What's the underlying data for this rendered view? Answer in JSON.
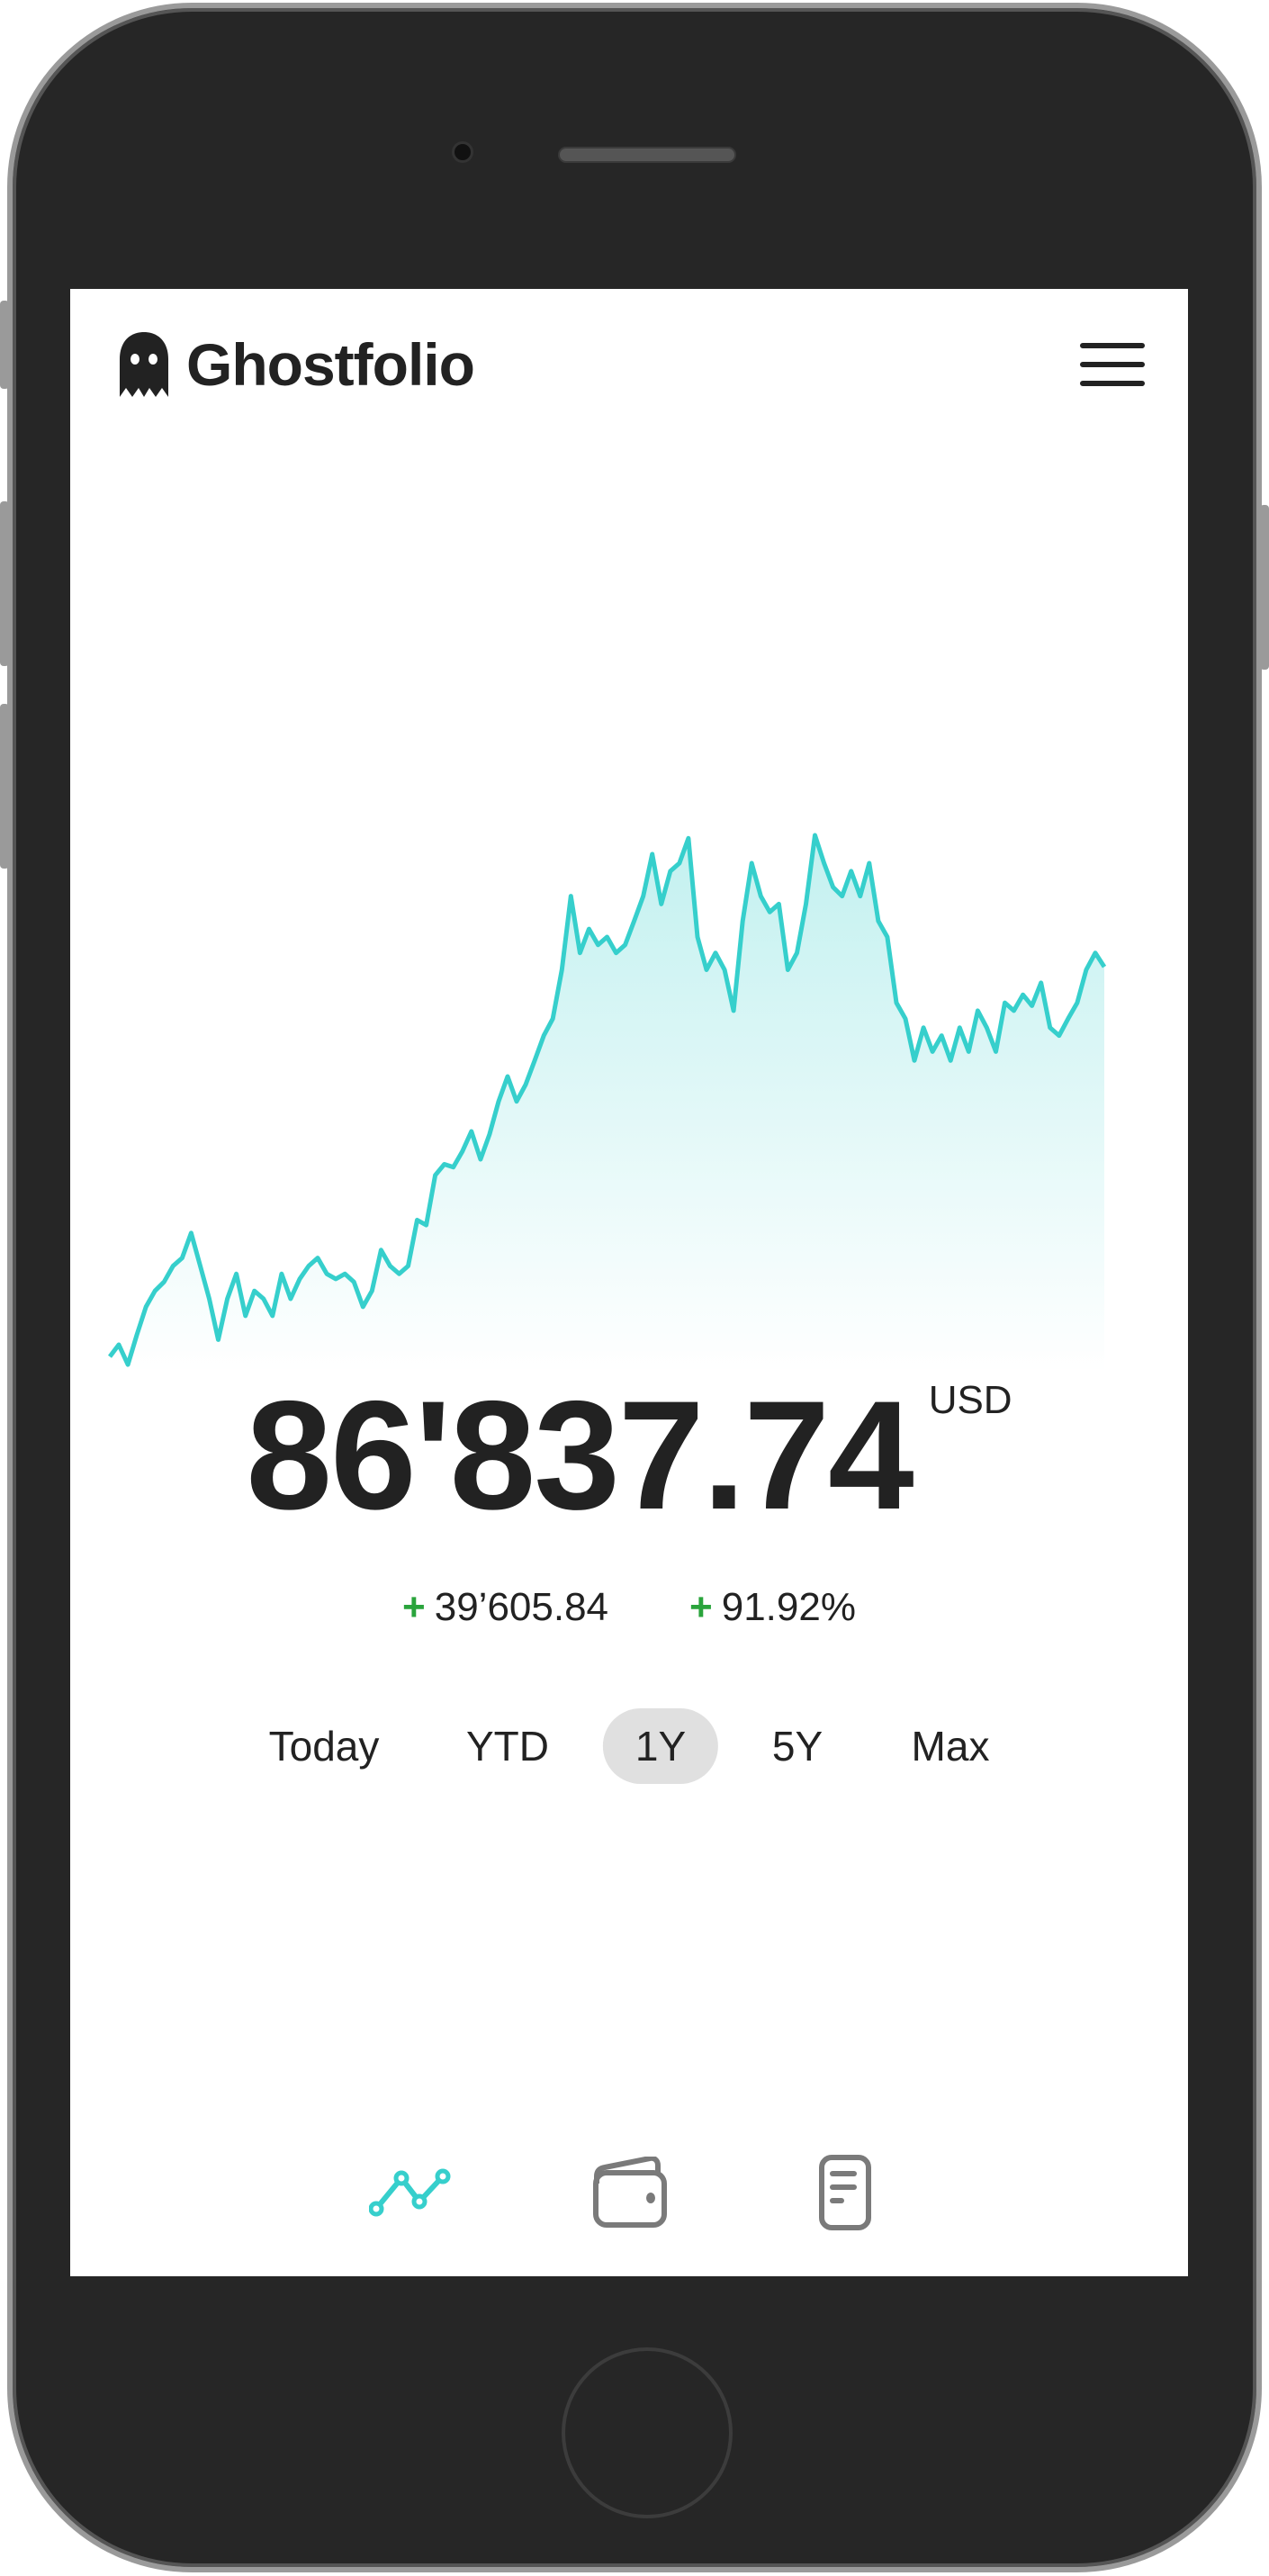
{
  "app": {
    "title": "Ghostfolio",
    "logo_icon": "ghost-icon",
    "menu_icon": "hamburger-menu-icon"
  },
  "colors": {
    "accent": "#36cfcc",
    "positive": "#2aa43c",
    "text": "#222222",
    "active_range_bg": "#e0e0e0",
    "inactive_icon": "#7a7a7a"
  },
  "summary": {
    "value": "86'837.74",
    "currency": "USD",
    "change_sign": "+",
    "change_absolute": "39’605.84",
    "change_percent": "91.92%"
  },
  "ranges": [
    {
      "label": "Today",
      "active": false
    },
    {
      "label": "YTD",
      "active": false
    },
    {
      "label": "1Y",
      "active": true
    },
    {
      "label": "5Y",
      "active": false
    },
    {
      "label": "Max",
      "active": false
    }
  ],
  "nav": [
    {
      "icon": "line-chart-icon",
      "active": true
    },
    {
      "icon": "wallet-icon",
      "active": false
    },
    {
      "icon": "document-icon",
      "active": false
    }
  ],
  "chart_data": {
    "type": "area",
    "title": "",
    "xlabel": "",
    "ylabel": "",
    "grid": false,
    "axes": false,
    "ylim": [
      45.6,
      99.5
    ],
    "values": [
      47.2,
      48.4,
      46.4,
      49.4,
      52.2,
      53.8,
      54.7,
      56.3,
      57.1,
      59.6,
      56.3,
      53.0,
      48.9,
      53.0,
      55.5,
      51.3,
      53.8,
      53.0,
      51.3,
      55.5,
      53.0,
      55.0,
      56.3,
      57.1,
      55.5,
      55.0,
      55.5,
      54.7,
      52.2,
      53.8,
      57.9,
      56.3,
      55.5,
      56.3,
      60.9,
      60.4,
      65.4,
      66.5,
      66.2,
      67.8,
      69.8,
      67.0,
      69.5,
      72.8,
      75.3,
      72.8,
      74.5,
      76.9,
      79.4,
      81.1,
      86.0,
      93.4,
      87.7,
      90.1,
      88.5,
      89.3,
      87.7,
      88.5,
      90.9,
      93.4,
      97.6,
      92.6,
      95.9,
      96.7,
      99.2,
      89.3,
      86.0,
      87.7,
      86.0,
      81.9,
      90.9,
      96.7,
      93.4,
      91.8,
      92.6,
      86.0,
      87.7,
      92.6,
      99.5,
      96.7,
      94.3,
      93.4,
      95.9,
      93.4,
      96.7,
      90.9,
      89.3,
      82.7,
      81.1,
      76.9,
      80.2,
      77.8,
      79.4,
      76.9,
      80.2,
      77.8,
      81.9,
      80.2,
      77.8,
      82.7,
      81.9,
      83.5,
      82.4,
      84.7,
      80.2,
      79.4,
      81.1,
      82.7,
      86.0,
      87.7,
      86.3
    ]
  }
}
